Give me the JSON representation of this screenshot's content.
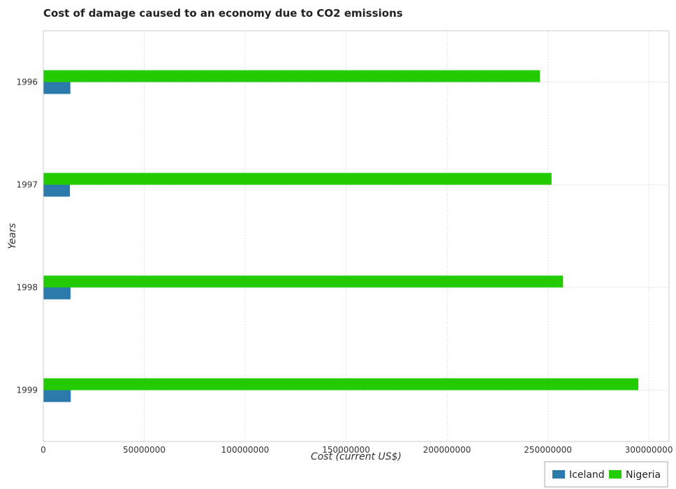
{
  "chart_data": {
    "type": "bar",
    "orientation": "horizontal",
    "title": "Cost of damage caused to an economy due to CO2 emissions",
    "xlabel": "Cost (current US$)",
    "ylabel": "Years",
    "categories": [
      "1996",
      "1997",
      "1998",
      "1999"
    ],
    "series": [
      {
        "name": "Iceland",
        "color": "#2a7bab",
        "values": [
          13400000,
          13200000,
          13500000,
          13600000
        ]
      },
      {
        "name": "Nigeria",
        "color": "#22cc00",
        "values": [
          246000000,
          251800000,
          257500000,
          294800000
        ]
      }
    ],
    "xlim": [
      0,
      310000000
    ],
    "xticks": [
      0,
      50000000,
      100000000,
      150000000,
      200000000,
      250000000,
      300000000
    ],
    "xtick_labels": [
      "0",
      "50000000",
      "100000000",
      "150000000",
      "200000000",
      "250000000",
      "300000000"
    ],
    "grid": true,
    "legend_position": "bottom-right"
  }
}
